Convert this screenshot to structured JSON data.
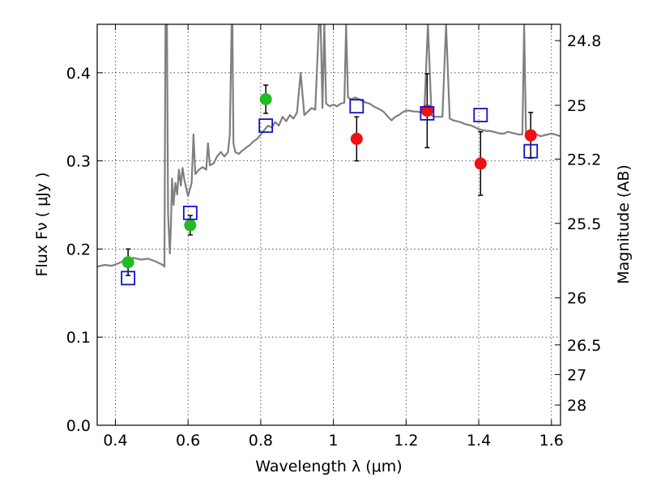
{
  "chart_data": {
    "type": "scatter",
    "xlabel": "Wavelength  λ (μm)",
    "ylabel": "Flux  Fν  ( μJy )",
    "ylabel_right": "Magnitude (AB)",
    "xlim": [
      0.35,
      1.625
    ],
    "ylim": [
      0.0,
      0.455
    ],
    "grid": true,
    "x_ticks": [
      "0.4",
      "0.6",
      "0.8",
      "1",
      "1.2",
      "1.4",
      "1.6"
    ],
    "x_tick_values": [
      0.4,
      0.6,
      0.8,
      1.0,
      1.2,
      1.4,
      1.6
    ],
    "y_ticks": [
      "0.0",
      "0.1",
      "0.2",
      "0.3",
      "0.4"
    ],
    "y_tick_values": [
      0.0,
      0.1,
      0.2,
      0.3,
      0.4
    ],
    "right_ticks": [
      {
        "label": "24.8",
        "mag": 24.8
      },
      {
        "label": "25",
        "mag": 25.0
      },
      {
        "label": "25.2",
        "mag": 25.2
      },
      {
        "label": "25.5",
        "mag": 25.5
      },
      {
        "label": "26",
        "mag": 26.0
      },
      {
        "label": "26.5",
        "mag": 26.5
      },
      {
        "label": "27",
        "mag": 27.0
      },
      {
        "label": "28",
        "mag": 28.0
      }
    ],
    "colors": {
      "model": "#7f7f7f",
      "green": "#22bb22",
      "red": "#ee1111",
      "blue": "#1111cc"
    },
    "series": [
      {
        "marker": "circle",
        "color": "#22bb22",
        "points": [
          {
            "x": 0.435,
            "y": 0.185,
            "err": 0.015
          },
          {
            "x": 0.606,
            "y": 0.227,
            "err": 0.011
          },
          {
            "x": 0.814,
            "y": 0.37,
            "err": 0.016
          }
        ]
      },
      {
        "marker": "circle",
        "color": "#ee1111",
        "points": [
          {
            "x": 1.064,
            "y": 0.325,
            "err": 0.025
          },
          {
            "x": 1.258,
            "y": 0.357,
            "err": 0.042
          },
          {
            "x": 1.405,
            "y": 0.297,
            "err": 0.036
          },
          {
            "x": 1.543,
            "y": 0.329,
            "err": 0.026
          }
        ]
      },
      {
        "marker": "square",
        "color": "#1111cc",
        "points": [
          {
            "x": 0.435,
            "y": 0.167
          },
          {
            "x": 0.606,
            "y": 0.241
          },
          {
            "x": 0.814,
            "y": 0.34
          },
          {
            "x": 1.064,
            "y": 0.362
          },
          {
            "x": 1.258,
            "y": 0.354
          },
          {
            "x": 1.405,
            "y": 0.352
          },
          {
            "x": 1.543,
            "y": 0.311
          }
        ]
      }
    ],
    "model_spectrum": {
      "color": "#7f7f7f",
      "x": [
        0.35,
        0.37,
        0.39,
        0.41,
        0.43,
        0.45,
        0.47,
        0.49,
        0.51,
        0.53,
        0.535,
        0.538,
        0.54,
        0.542,
        0.545,
        0.55,
        0.553,
        0.556,
        0.56,
        0.565,
        0.57,
        0.575,
        0.58,
        0.585,
        0.59,
        0.6,
        0.61,
        0.615,
        0.62,
        0.63,
        0.64,
        0.65,
        0.655,
        0.66,
        0.67,
        0.68,
        0.69,
        0.7,
        0.71,
        0.715,
        0.72,
        0.722,
        0.725,
        0.73,
        0.74,
        0.75,
        0.76,
        0.77,
        0.78,
        0.79,
        0.8,
        0.81,
        0.82,
        0.83,
        0.84,
        0.85,
        0.86,
        0.87,
        0.88,
        0.89,
        0.9,
        0.91,
        0.92,
        0.93,
        0.94,
        0.95,
        0.96,
        0.965,
        0.97,
        0.975,
        0.98,
        0.99,
        1.0,
        1.01,
        1.02,
        1.03,
        1.035,
        1.04,
        1.05,
        1.06,
        1.07,
        1.08,
        1.09,
        1.1,
        1.11,
        1.12,
        1.13,
        1.14,
        1.15,
        1.16,
        1.17,
        1.18,
        1.19,
        1.2,
        1.21,
        1.22,
        1.23,
        1.24,
        1.25,
        1.26,
        1.27,
        1.28,
        1.29,
        1.3,
        1.31,
        1.32,
        1.33,
        1.34,
        1.35,
        1.36,
        1.37,
        1.38,
        1.39,
        1.4,
        1.41,
        1.42,
        1.43,
        1.44,
        1.45,
        1.46,
        1.47,
        1.48,
        1.49,
        1.5,
        1.51,
        1.52,
        1.525,
        1.53,
        1.54,
        1.55,
        1.56,
        1.57,
        1.58,
        1.59,
        1.6,
        1.61,
        1.625
      ],
      "y": [
        0.18,
        0.182,
        0.181,
        0.184,
        0.188,
        0.19,
        0.188,
        0.189,
        0.186,
        0.182,
        0.18,
        0.455,
        0.455,
        0.455,
        0.24,
        0.195,
        0.23,
        0.28,
        0.25,
        0.275,
        0.262,
        0.29,
        0.272,
        0.292,
        0.278,
        0.26,
        0.275,
        0.33,
        0.285,
        0.29,
        0.293,
        0.29,
        0.32,
        0.295,
        0.297,
        0.305,
        0.31,
        0.305,
        0.31,
        0.33,
        0.455,
        0.455,
        0.32,
        0.31,
        0.308,
        0.312,
        0.315,
        0.318,
        0.322,
        0.325,
        0.33,
        0.335,
        0.34,
        0.338,
        0.344,
        0.34,
        0.35,
        0.345,
        0.352,
        0.348,
        0.355,
        0.4,
        0.352,
        0.356,
        0.36,
        0.358,
        0.455,
        0.455,
        0.36,
        0.455,
        0.365,
        0.362,
        0.364,
        0.362,
        0.365,
        0.366,
        0.455,
        0.372,
        0.37,
        0.372,
        0.37,
        0.368,
        0.366,
        0.365,
        0.362,
        0.36,
        0.358,
        0.355,
        0.35,
        0.346,
        0.35,
        0.352,
        0.355,
        0.357,
        0.357,
        0.356,
        0.356,
        0.355,
        0.354,
        0.455,
        0.352,
        0.35,
        0.35,
        0.35,
        0.455,
        0.348,
        0.346,
        0.345,
        0.344,
        0.342,
        0.341,
        0.34,
        0.338,
        0.336,
        0.335,
        0.334,
        0.334,
        0.333,
        0.332,
        0.331,
        0.331,
        0.333,
        0.332,
        0.331,
        0.33,
        0.33,
        0.455,
        0.33,
        0.329,
        0.328,
        0.33,
        0.328,
        0.329,
        0.33,
        0.331,
        0.33,
        0.328
      ]
    }
  }
}
